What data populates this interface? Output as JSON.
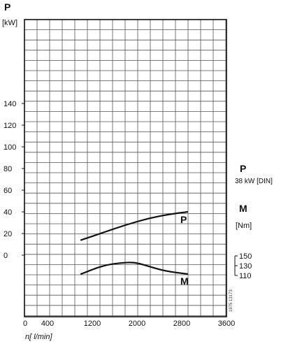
{
  "chart_data": {
    "type": "line",
    "left_axis": {
      "symbol": "P",
      "unit": "[kW]",
      "ticks": [
        0,
        20,
        40,
        60,
        80,
        100,
        120,
        140
      ]
    },
    "right_axis": {
      "symbol": "M",
      "unit": "[Nm]",
      "ticks": [
        110,
        130,
        150
      ],
      "tick_labels": [
        "110",
        "130",
        "150"
      ]
    },
    "x_axis": {
      "unit_label": "n[ l/min]",
      "ticks": [
        0,
        400,
        1200,
        2000,
        2800,
        3600
      ],
      "tick_labels": [
        "0",
        "400",
        "1200",
        "2000",
        "2800",
        "3600"
      ],
      "range": [
        0,
        3600
      ]
    },
    "power_note": {
      "symbol": "P",
      "value": "38 kW [DIN]"
    },
    "series": [
      {
        "name": "P",
        "axis": "left",
        "unit": "kW",
        "x": [
          1000,
          1400,
          1800,
          2200,
          2600,
          2900
        ],
        "y": [
          14,
          21,
          28,
          34,
          38,
          40
        ]
      },
      {
        "name": "M",
        "axis": "right",
        "unit": "Nm",
        "x": [
          1000,
          1400,
          1800,
          2000,
          2200,
          2500,
          2900
        ],
        "y": [
          113,
          131,
          137,
          136,
          129,
          119,
          113
        ]
      }
    ],
    "grid": true,
    "stamp": "1975 13173"
  }
}
